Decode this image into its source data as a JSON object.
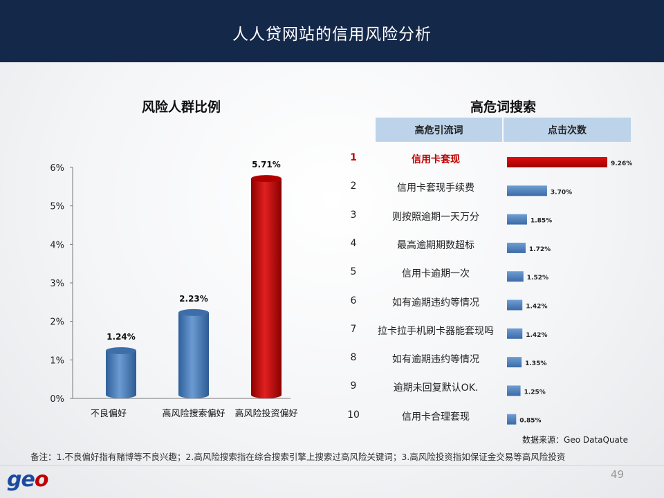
{
  "header": {
    "title": "人人贷网站的信用风险分析"
  },
  "left_section_title": "风险人群比例",
  "right_section_title": "高危词搜索",
  "table": {
    "col1_label": "高危引流词",
    "col2_label": "点击次数"
  },
  "source_text": "数据来源：Geo  DataQuate",
  "footnote": "备注：1.不良偏好指有赌博等不良兴趣；2.高风险搜索指在综合搜索引擎上搜索过高风险关键词；3.高风险投资指如保证金交易等高风险投资",
  "page_number": "49",
  "logo": {
    "prefix": "ge",
    "accent": "o"
  },
  "colors": {
    "header_bg": "#14284a",
    "bar_blue": "#4f81bd",
    "bar_red": "#c00000",
    "table_header_bg": "#bcd3ea"
  },
  "chart_data": [
    {
      "type": "bar",
      "title": "风险人群比例",
      "categories": [
        "不良偏好",
        "高风险搜索偏好",
        "高风险投资偏好"
      ],
      "values": [
        1.24,
        2.23,
        5.71
      ],
      "value_labels": [
        "1.24%",
        "2.23%",
        "5.71%"
      ],
      "highlight_index": 2,
      "ylim": [
        0,
        6
      ],
      "yticks": [
        0,
        1,
        2,
        3,
        4,
        5,
        6
      ],
      "ytick_labels": [
        "0%",
        "1%",
        "2%",
        "3%",
        "4%",
        "5%",
        "6%"
      ],
      "grid": false,
      "legend": "none"
    },
    {
      "type": "bar",
      "orientation": "horizontal",
      "title": "高危词搜索",
      "ranks": [
        "1",
        "2",
        "3",
        "4",
        "5",
        "6",
        "7",
        "8",
        "9",
        "10"
      ],
      "categories": [
        "信用卡套现",
        "信用卡套现手续费",
        "则按照逾期一天万分",
        "最高逾期期数超标",
        "信用卡逾期一次",
        "如有逾期违约等情况",
        "拉卡拉手机刷卡器能套现吗",
        "如有逾期违约等情况",
        "逾期未回复默认OK.",
        "信用卡合理套现"
      ],
      "values": [
        9.26,
        3.7,
        1.85,
        1.72,
        1.52,
        1.42,
        1.42,
        1.35,
        1.25,
        0.85
      ],
      "value_labels": [
        "9.26%",
        "3.70%",
        "1.85%",
        "1.72%",
        "1.52%",
        "1.42%",
        "1.42%",
        "1.35%",
        "1.25%",
        "0.85%"
      ],
      "highlight_index": 0,
      "legend": "none"
    }
  ]
}
